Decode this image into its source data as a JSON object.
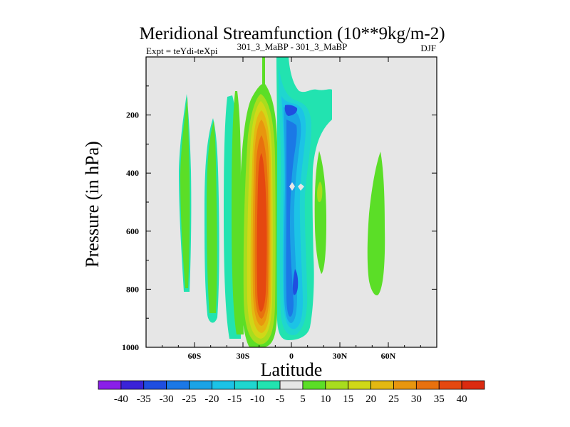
{
  "chart_data": {
    "type": "contour",
    "title": "Meridional Streamfunction (10**9kg/m-2)",
    "left_label": "Expt = teYdi-teXpi",
    "center_label": "301_3_MaBP - 301_3_MaBP",
    "right_label": "DJF",
    "xlabel": "Latitude",
    "ylabel": "Pressure (in hPa)",
    "xlim": [
      -90,
      90
    ],
    "ylim": [
      1000,
      0
    ],
    "x_ticks": [
      {
        "value": -60,
        "label": "60S"
      },
      {
        "value": -30,
        "label": "30S"
      },
      {
        "value": 0,
        "label": "0"
      },
      {
        "value": 30,
        "label": "30N"
      },
      {
        "value": 60,
        "label": "60N"
      }
    ],
    "y_ticks": [
      {
        "value": 200,
        "label": "200"
      },
      {
        "value": 400,
        "label": "400"
      },
      {
        "value": 600,
        "label": "600"
      },
      {
        "value": 800,
        "label": "800"
      },
      {
        "value": 1000,
        "label": "1000"
      }
    ],
    "colorbar": {
      "levels": [
        -40,
        -35,
        -30,
        -25,
        -20,
        -15,
        -10,
        -5,
        5,
        10,
        15,
        20,
        25,
        30,
        35,
        40
      ],
      "colors": [
        "#8a1fe8",
        "#3a23d8",
        "#1f4ee0",
        "#1b78e6",
        "#1aa3e6",
        "#1cc3e6",
        "#1fd6cf",
        "#22e3b0",
        "#e6e6e6",
        "#5bde27",
        "#a8dd1e",
        "#d0d818",
        "#e3b812",
        "#e8960e",
        "#e8710e",
        "#e54810",
        "#db2a10"
      ]
    },
    "regions": [
      {
        "name": "minus-5-band-left",
        "color": "#1fd6cf",
        "bounds": {
          "lat": [
            -79,
            -67
          ],
          "p": [
            120,
            800
          ]
        }
      },
      {
        "name": "5-band-far-left",
        "color": "#5bde27",
        "bounds": {
          "lat": [
            -80,
            -68
          ],
          "p": [
            130,
            810
          ]
        }
      },
      {
        "name": "minus-5-band-mid-left",
        "color": "#22e3b0",
        "bounds": {
          "lat": [
            -52,
            -42
          ],
          "p": [
            200,
            955
          ]
        }
      },
      {
        "name": "5-band-left-of-max",
        "color": "#5bde27",
        "bounds": {
          "lat": [
            -34,
            -25
          ],
          "p": [
            120,
            950
          ]
        }
      },
      {
        "name": "positive-cell-max",
        "color": "#e54810",
        "value": 40,
        "bounds": {
          "lat": [
            -20,
            -12
          ],
          "p": [
            100,
            985
          ]
        }
      },
      {
        "name": "negative-cell-min",
        "color": "#1f4ee0",
        "value": -30,
        "bounds": {
          "lat": [
            -6,
            8
          ],
          "p": [
            0,
            980
          ]
        }
      },
      {
        "name": "5-band-right",
        "color": "#5bde27",
        "bounds": {
          "lat": [
            14,
            20
          ],
          "p": [
            330,
            640
          ]
        }
      },
      {
        "name": "5-band-far-right",
        "color": "#5bde27",
        "bounds": {
          "lat": [
            48,
            58
          ],
          "p": [
            330,
            860
          ]
        }
      }
    ]
  }
}
